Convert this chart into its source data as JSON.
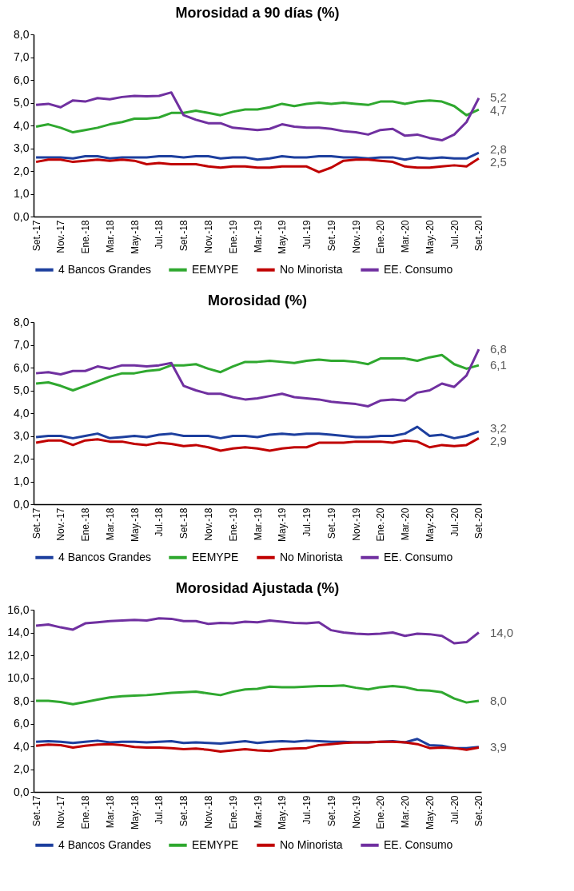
{
  "chart_data": [
    {
      "type": "line",
      "title": "Morosidad a 90 días (%)",
      "categories": [
        "Set.-17",
        null,
        "Nov.-17",
        null,
        "Ene.-18",
        null,
        "Mar.-18",
        null,
        "May.-18",
        null,
        "Jul.-18",
        null,
        "Set.-18",
        null,
        "Nov.-18",
        null,
        "Ene.-19",
        null,
        "Mar.-19",
        null,
        "May.-19",
        null,
        "Jul.-19",
        null,
        "Set.-19",
        null,
        "Nov.-19",
        null,
        "Ene.-20",
        null,
        "Mar.-20",
        null,
        "May.-20",
        null,
        "Jul.-20",
        null,
        "Set.-20"
      ],
      "series": [
        {
          "name": "4 Bancos Grandes",
          "color": "#1d3f9e",
          "values": [
            2.6,
            2.6,
            2.6,
            2.55,
            2.65,
            2.65,
            2.55,
            2.6,
            2.6,
            2.6,
            2.65,
            2.65,
            2.6,
            2.65,
            2.65,
            2.55,
            2.6,
            2.6,
            2.5,
            2.55,
            2.65,
            2.6,
            2.6,
            2.65,
            2.65,
            2.6,
            2.6,
            2.55,
            2.6,
            2.6,
            2.5,
            2.6,
            2.55,
            2.6,
            2.55,
            2.55,
            2.8
          ],
          "value_labels": [
            null,
            null,
            null,
            null,
            null,
            null,
            null,
            null,
            null,
            null,
            null,
            null,
            null,
            null,
            null,
            null,
            null,
            null,
            null,
            null,
            null,
            null,
            null,
            null,
            null,
            null,
            null,
            null,
            null,
            null,
            null,
            null,
            null,
            null,
            null,
            null,
            "2,8"
          ]
        },
        {
          "name": "EEMYPE",
          "color": "#2fa82f",
          "values": [
            3.95,
            4.05,
            3.9,
            3.7,
            3.8,
            3.9,
            4.05,
            4.15,
            4.3,
            4.3,
            4.35,
            4.55,
            4.55,
            4.65,
            4.55,
            4.45,
            4.6,
            4.7,
            4.7,
            4.8,
            4.95,
            4.85,
            4.95,
            5.0,
            4.95,
            5.0,
            4.95,
            4.9,
            5.05,
            5.05,
            4.95,
            5.05,
            5.1,
            5.05,
            4.85,
            4.45,
            4.7
          ],
          "value_labels": [
            null,
            null,
            null,
            null,
            null,
            null,
            null,
            null,
            null,
            null,
            null,
            null,
            null,
            null,
            null,
            null,
            null,
            null,
            null,
            null,
            null,
            null,
            null,
            null,
            null,
            null,
            null,
            null,
            null,
            null,
            null,
            null,
            null,
            null,
            null,
            null,
            "4,7"
          ]
        },
        {
          "name": "No Minorista",
          "color": "#c00000",
          "values": [
            2.4,
            2.5,
            2.5,
            2.4,
            2.45,
            2.5,
            2.45,
            2.5,
            2.45,
            2.3,
            2.35,
            2.3,
            2.3,
            2.3,
            2.2,
            2.15,
            2.2,
            2.2,
            2.15,
            2.15,
            2.2,
            2.2,
            2.2,
            1.95,
            2.15,
            2.45,
            2.5,
            2.5,
            2.45,
            2.4,
            2.2,
            2.15,
            2.15,
            2.2,
            2.25,
            2.2,
            2.55
          ],
          "value_labels": [
            null,
            null,
            null,
            null,
            null,
            null,
            null,
            null,
            null,
            null,
            null,
            null,
            null,
            null,
            null,
            null,
            null,
            null,
            null,
            null,
            null,
            null,
            null,
            null,
            null,
            null,
            null,
            null,
            null,
            null,
            null,
            null,
            null,
            null,
            null,
            null,
            "2,5"
          ]
        },
        {
          "name": "EE. Consumo",
          "color": "#7030a0",
          "values": [
            4.9,
            4.95,
            4.8,
            5.1,
            5.05,
            5.2,
            5.15,
            5.25,
            5.3,
            5.28,
            5.3,
            5.45,
            4.45,
            4.25,
            4.1,
            4.1,
            3.9,
            3.85,
            3.8,
            3.85,
            4.05,
            3.95,
            3.9,
            3.9,
            3.85,
            3.75,
            3.7,
            3.6,
            3.8,
            3.85,
            3.55,
            3.6,
            3.45,
            3.35,
            3.6,
            4.15,
            5.2
          ],
          "value_labels": [
            null,
            null,
            null,
            null,
            null,
            null,
            null,
            null,
            null,
            null,
            null,
            null,
            null,
            null,
            null,
            null,
            null,
            null,
            null,
            null,
            null,
            null,
            null,
            null,
            null,
            null,
            null,
            null,
            null,
            null,
            null,
            null,
            null,
            null,
            null,
            null,
            "5,2"
          ]
        }
      ],
      "ylim": [
        0,
        8
      ],
      "yticks": [
        {
          "value": 0,
          "label": "0,0"
        },
        {
          "value": 1,
          "label": "1,0"
        },
        {
          "value": 2,
          "label": "2,0"
        },
        {
          "value": 3,
          "label": "3,0"
        },
        {
          "value": 4,
          "label": "4,0"
        },
        {
          "value": 5,
          "label": "5,0"
        },
        {
          "value": 6,
          "label": "6,0"
        },
        {
          "value": 7,
          "label": "7,0"
        },
        {
          "value": 8,
          "label": "8,0"
        }
      ],
      "grid": false,
      "legend": "bottom"
    },
    {
      "type": "line",
      "title": "Morosidad (%)",
      "categories": [
        "Set.-17",
        null,
        "Nov.-17",
        null,
        "Ene.-18",
        null,
        "Mar.-18",
        null,
        "May.-18",
        null,
        "Jul.-18",
        null,
        "Set.-18",
        null,
        "Nov.-18",
        null,
        "Ene.-19",
        null,
        "Mar.-19",
        null,
        "May.-19",
        null,
        "Jul.-19",
        null,
        "Set.-19",
        null,
        "Nov.-19",
        null,
        "Ene.-20",
        null,
        "Mar.-20",
        null,
        "May.-20",
        null,
        "Jul.-20",
        null,
        "Set.-20"
      ],
      "series": [
        {
          "name": "4 Bancos Grandes",
          "color": "#1d3f9e",
          "values": [
            2.95,
            3.0,
            3.0,
            2.9,
            3.0,
            3.1,
            2.9,
            2.95,
            3.0,
            2.95,
            3.05,
            3.1,
            3.0,
            3.0,
            3.0,
            2.9,
            3.0,
            3.0,
            2.95,
            3.05,
            3.1,
            3.05,
            3.1,
            3.1,
            3.05,
            3.0,
            2.95,
            2.95,
            3.0,
            3.0,
            3.1,
            3.4,
            3.0,
            3.05,
            2.9,
            3.0,
            3.2
          ],
          "value_labels": [
            null,
            null,
            null,
            null,
            null,
            null,
            null,
            null,
            null,
            null,
            null,
            null,
            null,
            null,
            null,
            null,
            null,
            null,
            null,
            null,
            null,
            null,
            null,
            null,
            null,
            null,
            null,
            null,
            null,
            null,
            null,
            null,
            null,
            null,
            null,
            null,
            "3,2"
          ]
        },
        {
          "name": "EEMYPE",
          "color": "#2fa82f",
          "values": [
            5.3,
            5.35,
            5.2,
            5.0,
            5.2,
            5.4,
            5.6,
            5.75,
            5.75,
            5.85,
            5.9,
            6.1,
            6.1,
            6.15,
            5.95,
            5.8,
            6.05,
            6.25,
            6.25,
            6.3,
            6.25,
            6.2,
            6.3,
            6.35,
            6.3,
            6.3,
            6.25,
            6.15,
            6.4,
            6.4,
            6.4,
            6.3,
            6.45,
            6.55,
            6.15,
            5.95,
            6.1
          ],
          "value_labels": [
            null,
            null,
            null,
            null,
            null,
            null,
            null,
            null,
            null,
            null,
            null,
            null,
            null,
            null,
            null,
            null,
            null,
            null,
            null,
            null,
            null,
            null,
            null,
            null,
            null,
            null,
            null,
            null,
            null,
            null,
            null,
            null,
            null,
            null,
            null,
            null,
            "6,1"
          ]
        },
        {
          "name": "No Minorista",
          "color": "#c00000",
          "values": [
            2.7,
            2.8,
            2.8,
            2.6,
            2.8,
            2.85,
            2.75,
            2.75,
            2.65,
            2.6,
            2.7,
            2.65,
            2.55,
            2.6,
            2.5,
            2.35,
            2.45,
            2.5,
            2.45,
            2.35,
            2.45,
            2.5,
            2.5,
            2.7,
            2.7,
            2.7,
            2.75,
            2.75,
            2.75,
            2.7,
            2.8,
            2.75,
            2.5,
            2.6,
            2.55,
            2.6,
            2.9
          ],
          "value_labels": [
            null,
            null,
            null,
            null,
            null,
            null,
            null,
            null,
            null,
            null,
            null,
            null,
            null,
            null,
            null,
            null,
            null,
            null,
            null,
            null,
            null,
            null,
            null,
            null,
            null,
            null,
            null,
            null,
            null,
            null,
            null,
            null,
            null,
            null,
            null,
            null,
            "2,9"
          ]
        },
        {
          "name": "EE. Consumo",
          "color": "#7030a0",
          "values": [
            5.75,
            5.8,
            5.7,
            5.85,
            5.85,
            6.05,
            5.95,
            6.1,
            6.1,
            6.05,
            6.1,
            6.2,
            5.2,
            5.0,
            4.85,
            4.85,
            4.7,
            4.6,
            4.65,
            4.75,
            4.85,
            4.7,
            4.65,
            4.6,
            4.5,
            4.45,
            4.4,
            4.3,
            4.55,
            4.6,
            4.55,
            4.9,
            5.0,
            5.3,
            5.15,
            5.65,
            6.8
          ],
          "value_labels": [
            null,
            null,
            null,
            null,
            null,
            null,
            null,
            null,
            null,
            null,
            null,
            null,
            null,
            null,
            null,
            null,
            null,
            null,
            null,
            null,
            null,
            null,
            null,
            null,
            null,
            null,
            null,
            null,
            null,
            null,
            null,
            null,
            null,
            null,
            null,
            null,
            "6,8"
          ]
        }
      ],
      "ylim": [
        0,
        8
      ],
      "yticks": [
        {
          "value": 0,
          "label": "0,0"
        },
        {
          "value": 1,
          "label": "1,0"
        },
        {
          "value": 2,
          "label": "2,0"
        },
        {
          "value": 3,
          "label": "3,0"
        },
        {
          "value": 4,
          "label": "4,0"
        },
        {
          "value": 5,
          "label": "5,0"
        },
        {
          "value": 6,
          "label": "6,0"
        },
        {
          "value": 7,
          "label": "7,0"
        },
        {
          "value": 8,
          "label": "8,0"
        }
      ],
      "grid": false,
      "legend": "bottom"
    },
    {
      "type": "line",
      "title": "Morosidad Ajustada (%)",
      "categories": [
        "Set.-17",
        null,
        "Nov.-17",
        null,
        "Ene.-18",
        null,
        "Mar.-18",
        null,
        "May.-18",
        null,
        "Jul.-18",
        null,
        "Set.-18",
        null,
        "Nov.-18",
        null,
        "Ene.-19",
        null,
        "Mar.-19",
        null,
        "May.-19",
        null,
        "Jul.-19",
        null,
        "Set.-19",
        null,
        "Nov.-19",
        null,
        "Ene.-20",
        null,
        "Mar.-20",
        null,
        "May.-20",
        null,
        "Jul.-20",
        null,
        "Set.-20"
      ],
      "series": [
        {
          "name": "4 Bancos Grandes",
          "color": "#1d3f9e",
          "values": [
            4.4,
            4.45,
            4.4,
            4.3,
            4.4,
            4.5,
            4.35,
            4.4,
            4.4,
            4.35,
            4.4,
            4.45,
            4.3,
            4.35,
            4.3,
            4.25,
            4.35,
            4.45,
            4.3,
            4.4,
            4.45,
            4.4,
            4.5,
            4.45,
            4.4,
            4.4,
            4.35,
            4.35,
            4.4,
            4.45,
            4.35,
            4.65,
            4.1,
            4.05,
            3.85,
            3.85,
            3.95
          ]
        },
        {
          "name": "EEMYPE",
          "color": "#2fa82f",
          "values": [
            8.0,
            8.0,
            7.9,
            7.7,
            7.9,
            8.1,
            8.3,
            8.4,
            8.45,
            8.5,
            8.6,
            8.7,
            8.75,
            8.8,
            8.65,
            8.5,
            8.8,
            9.0,
            9.05,
            9.25,
            9.2,
            9.2,
            9.25,
            9.3,
            9.3,
            9.35,
            9.15,
            9.0,
            9.2,
            9.3,
            9.2,
            8.95,
            8.9,
            8.75,
            8.2,
            7.85,
            8.0
          ],
          "value_labels": [
            null,
            null,
            null,
            null,
            null,
            null,
            null,
            null,
            null,
            null,
            null,
            null,
            null,
            null,
            null,
            null,
            null,
            null,
            null,
            null,
            null,
            null,
            null,
            null,
            null,
            null,
            null,
            null,
            null,
            null,
            null,
            null,
            null,
            null,
            null,
            null,
            "8,0"
          ]
        },
        {
          "name": "No Minorista",
          "color": "#c00000",
          "values": [
            4.05,
            4.15,
            4.1,
            3.9,
            4.05,
            4.15,
            4.2,
            4.1,
            3.95,
            3.9,
            3.9,
            3.85,
            3.75,
            3.8,
            3.7,
            3.55,
            3.65,
            3.75,
            3.65,
            3.6,
            3.75,
            3.8,
            3.85,
            4.1,
            4.2,
            4.3,
            4.35,
            4.35,
            4.4,
            4.4,
            4.35,
            4.2,
            3.85,
            3.9,
            3.85,
            3.7,
            3.9
          ],
          "value_labels": [
            null,
            null,
            null,
            null,
            null,
            null,
            null,
            null,
            null,
            null,
            null,
            null,
            null,
            null,
            null,
            null,
            null,
            null,
            null,
            null,
            null,
            null,
            null,
            null,
            null,
            null,
            null,
            null,
            null,
            null,
            null,
            null,
            null,
            null,
            null,
            null,
            "3,9"
          ]
        },
        {
          "name": "EE. Consumo",
          "color": "#7030a0",
          "values": [
            14.6,
            14.7,
            14.45,
            14.25,
            14.8,
            14.9,
            15.0,
            15.05,
            15.1,
            15.05,
            15.25,
            15.2,
            15.0,
            15.0,
            14.75,
            14.85,
            14.8,
            14.95,
            14.9,
            15.05,
            14.95,
            14.85,
            14.8,
            14.9,
            14.2,
            14.0,
            13.9,
            13.85,
            13.9,
            14.0,
            13.7,
            13.9,
            13.85,
            13.7,
            13.05,
            13.15,
            14.0
          ],
          "value_labels": [
            null,
            null,
            null,
            null,
            null,
            null,
            null,
            null,
            null,
            null,
            null,
            null,
            null,
            null,
            null,
            null,
            null,
            null,
            null,
            null,
            null,
            null,
            null,
            null,
            null,
            null,
            null,
            null,
            null,
            null,
            null,
            null,
            null,
            null,
            null,
            null,
            "14,0"
          ]
        }
      ],
      "ylim": [
        0,
        16
      ],
      "yticks": [
        {
          "value": 0,
          "label": "0,0"
        },
        {
          "value": 2,
          "label": "2,0"
        },
        {
          "value": 4,
          "label": "4,0"
        },
        {
          "value": 6,
          "label": "6,0"
        },
        {
          "value": 8,
          "label": "8,0"
        },
        {
          "value": 10,
          "label": "10,0"
        },
        {
          "value": 12,
          "label": "12,0"
        },
        {
          "value": 14,
          "label": "14,0"
        },
        {
          "value": 16,
          "label": "16,0"
        }
      ],
      "grid": false,
      "legend": "bottom"
    }
  ]
}
